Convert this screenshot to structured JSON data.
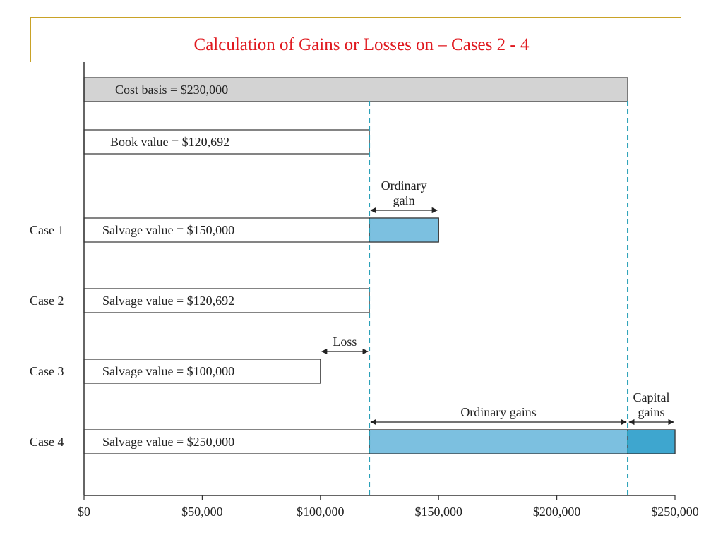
{
  "slide": {
    "title": "Calculation  of  Gains or Losses on – Cases 2 - 4",
    "title_color": "#e0191f",
    "frame_color": "#c9a227"
  },
  "chart_data": {
    "type": "bar",
    "xlim": [
      0,
      250000
    ],
    "x_ticks": [
      0,
      50000,
      100000,
      150000,
      200000,
      250000
    ],
    "x_tick_labels": [
      "$0",
      "$50,000",
      "$100,000",
      "$150,000",
      "$200,000",
      "$250,000"
    ],
    "reference_lines": [
      120692,
      230000
    ],
    "rows": [
      {
        "case": "",
        "label": "Cost basis = $230,000",
        "value": 230000,
        "fill": "#d3d3d3"
      },
      {
        "case": "",
        "label": "Book value = $120,692",
        "value": 120692,
        "fill": "#ffffff"
      },
      {
        "case": "Case 1",
        "label": "Salvage value = $150,000",
        "value": 150000,
        "fill": "#ffffff",
        "gains": [
          {
            "from": 120692,
            "to": 150000,
            "type": "Ordinary gain",
            "fill": "#7cc0e0"
          }
        ]
      },
      {
        "case": "Case 2",
        "label": "Salvage value = $120,692",
        "value": 120692,
        "fill": "#ffffff"
      },
      {
        "case": "Case 3",
        "label": "Salvage value = $100,000",
        "value": 100000,
        "fill": "#ffffff"
      },
      {
        "case": "Case 4",
        "label": "Salvage value = $250,000",
        "value": 250000,
        "fill": "#ffffff",
        "gains": [
          {
            "from": 120692,
            "to": 230000,
            "type": "Ordinary gains",
            "fill": "#7cc0e0"
          },
          {
            "from": 230000,
            "to": 250000,
            "type": "Capital gains",
            "fill": "#3ea6cf"
          }
        ]
      }
    ],
    "annotations": [
      {
        "row": 2,
        "from": 120692,
        "to": 150000,
        "lines": [
          "Ordinary",
          "gain"
        ]
      },
      {
        "row": 4,
        "from": 100000,
        "to": 120692,
        "lines": [
          "Loss"
        ]
      },
      {
        "row": 5,
        "from": 120692,
        "to": 230000,
        "lines": [
          "Ordinary gains"
        ]
      },
      {
        "row": 5,
        "from": 230000,
        "to": 250000,
        "lines": [
          "Capital",
          "gains"
        ]
      }
    ],
    "colors": {
      "reference_line": "#2aa0b8",
      "axis": "#333333",
      "bar_border": "#333333"
    }
  }
}
